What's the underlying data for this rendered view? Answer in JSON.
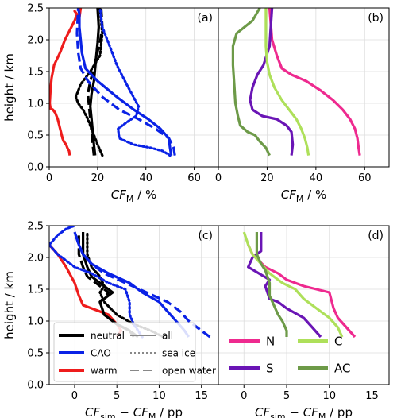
{
  "chart_data": [
    {
      "panel": "(a)",
      "type": "line",
      "ylabel": "height / km",
      "xlabel_base": "CF",
      "xlabel_sub": "M",
      "xlabel_unit": " / %",
      "xlim": [
        0,
        70
      ],
      "ylim": [
        0,
        2.5
      ],
      "xticks": [
        0,
        20,
        40,
        60
      ],
      "yticks": [
        0.0,
        0.5,
        1.0,
        1.5,
        2.0,
        2.5
      ],
      "series": [
        {
          "color": "#ee1c1c",
          "style": "solid",
          "x": [
            8.5,
            8.2,
            7.5,
            7.0,
            6.0,
            5.5,
            4.5,
            3.5,
            2.5,
            1.5,
            0.5,
            0.2,
            0.5,
            1.0,
            2.0,
            4.5,
            6.5,
            8.5,
            10.5,
            11.5,
            10.5,
            12.5,
            13.0
          ],
          "y": [
            0.18,
            0.25,
            0.3,
            0.35,
            0.4,
            0.45,
            0.6,
            0.75,
            0.85,
            0.9,
            0.92,
            1.0,
            1.2,
            1.4,
            1.6,
            1.8,
            2.0,
            2.15,
            2.3,
            2.4,
            2.45,
            2.35,
            2.5
          ]
        },
        {
          "color": "#000000",
          "style": "solid",
          "x": [
            19,
            18.5,
            18,
            17.5,
            17,
            17.5,
            18.5,
            19,
            19.5,
            20,
            20.5,
            20
          ],
          "y": [
            0.18,
            0.35,
            0.55,
            0.75,
            0.95,
            1.15,
            1.35,
            1.55,
            1.75,
            1.95,
            2.2,
            2.5
          ]
        },
        {
          "color": "#000000",
          "style": "dotted",
          "x": [
            22,
            20,
            18,
            16,
            14,
            12,
            11,
            13,
            17,
            21,
            22,
            21
          ],
          "y": [
            0.18,
            0.35,
            0.55,
            0.75,
            0.9,
            1.0,
            1.1,
            1.3,
            1.5,
            1.75,
            2.1,
            2.5
          ]
        },
        {
          "color": "#000000",
          "style": "dashed",
          "x": [
            18.5,
            18,
            17.5,
            17,
            16.5,
            16,
            17,
            18.5,
            19.5,
            21,
            22,
            21.5
          ],
          "y": [
            0.18,
            0.35,
            0.55,
            0.75,
            0.95,
            1.15,
            1.35,
            1.55,
            1.75,
            1.95,
            2.2,
            2.5
          ]
        },
        {
          "color": "#0a22e6",
          "style": "solid",
          "x": [
            50.5,
            50,
            49.5,
            46,
            41,
            35,
            28,
            20,
            15,
            13.5,
            13,
            12.5,
            12.5,
            12
          ],
          "y": [
            0.18,
            0.3,
            0.45,
            0.6,
            0.75,
            0.9,
            1.1,
            1.35,
            1.55,
            1.8,
            2.0,
            2.2,
            2.4,
            2.5
          ]
        },
        {
          "color": "#0a22e6",
          "style": "dotted",
          "x": [
            50,
            47,
            42,
            35,
            29,
            28.5,
            32,
            36,
            37,
            32,
            28,
            25,
            22,
            21
          ],
          "y": [
            0.18,
            0.25,
            0.3,
            0.35,
            0.45,
            0.6,
            0.7,
            0.8,
            0.95,
            1.3,
            1.6,
            1.9,
            2.2,
            2.5
          ]
        },
        {
          "color": "#0a22e6",
          "style": "dashed",
          "x": [
            52,
            51.5,
            49.5,
            44,
            37,
            29,
            22,
            16,
            13,
            12,
            11.5,
            12
          ],
          "y": [
            0.18,
            0.3,
            0.45,
            0.6,
            0.75,
            0.9,
            1.1,
            1.35,
            1.55,
            1.8,
            2.1,
            2.5
          ]
        }
      ]
    },
    {
      "panel": "(b)",
      "type": "line",
      "xlabel_base": "CF",
      "xlabel_sub": "M",
      "xlabel_unit": " / %",
      "xlim": [
        0,
        70
      ],
      "ylim": [
        0,
        2.5
      ],
      "xticks": [
        0,
        20,
        40,
        60
      ],
      "series": [
        {
          "name": "N",
          "color": "#ee2a8f",
          "style": "solid",
          "x": [
            58,
            57.5,
            57,
            56,
            54,
            51,
            47,
            42,
            36,
            30,
            26,
            24,
            22,
            21
          ],
          "y": [
            0.18,
            0.3,
            0.45,
            0.6,
            0.75,
            0.9,
            1.05,
            1.2,
            1.35,
            1.45,
            1.55,
            1.75,
            2.0,
            2.5
          ]
        },
        {
          "name": "S",
          "color": "#6a15b5",
          "style": "solid",
          "x": [
            30,
            30.5,
            30,
            28,
            24,
            18,
            14,
            13,
            14,
            16,
            18.5,
            21,
            21.5,
            22
          ],
          "y": [
            0.18,
            0.35,
            0.55,
            0.65,
            0.75,
            0.8,
            0.9,
            1.05,
            1.25,
            1.45,
            1.6,
            1.9,
            2.2,
            2.5
          ]
        },
        {
          "name": "C",
          "color": "#aee05a",
          "style": "solid",
          "x": [
            37,
            36.5,
            35.5,
            34,
            32,
            29,
            26,
            23,
            21,
            20,
            19.5,
            19.5,
            19.5
          ],
          "y": [
            0.18,
            0.3,
            0.45,
            0.6,
            0.75,
            0.9,
            1.05,
            1.25,
            1.45,
            1.65,
            1.9,
            2.2,
            2.5
          ]
        },
        {
          "name": "AC",
          "color": "#6d9a48",
          "style": "solid",
          "x": [
            21,
            19.5,
            17,
            15,
            12,
            9,
            8,
            7,
            6.5,
            6,
            6,
            7.5,
            14,
            17
          ],
          "y": [
            0.18,
            0.3,
            0.4,
            0.5,
            0.55,
            0.65,
            0.8,
            1.0,
            1.3,
            1.6,
            1.9,
            2.1,
            2.3,
            2.5
          ]
        }
      ]
    },
    {
      "panel": "(c)",
      "type": "line",
      "ylabel": "height / km",
      "xlabel_base": "CF",
      "xlabel_sub": "sim",
      "xlabel_mid": " − CF",
      "xlabel_sub2": "M",
      "xlabel_unit": " / pp",
      "xlim": [
        -3,
        17
      ],
      "ylim": [
        0,
        2.5
      ],
      "xticks": [
        0,
        5,
        10,
        15
      ],
      "yticks": [
        0.0,
        0.5,
        1.0,
        1.5,
        2.0,
        2.5
      ],
      "series": [
        {
          "color": "#ee1c1c",
          "style": "solid",
          "x": [
            5,
            5.5,
            5,
            4,
            2,
            1,
            0.5,
            0,
            -1,
            -2,
            -3
          ],
          "y": [
            0.75,
            0.85,
            0.95,
            1.1,
            1.2,
            1.25,
            1.4,
            1.6,
            1.85,
            2.05,
            2.2
          ]
        },
        {
          "color": "#000000",
          "style": "solid",
          "x": [
            7,
            6.5,
            5,
            3.5,
            3,
            4.5,
            3.5,
            2,
            1.5,
            1,
            1
          ],
          "y": [
            0.75,
            0.85,
            0.95,
            1.1,
            1.3,
            1.45,
            1.55,
            1.7,
            1.85,
            2.05,
            2.4
          ]
        },
        {
          "color": "#000000",
          "style": "dotted",
          "x": [
            10.5,
            9,
            7,
            5,
            3.5,
            3,
            3.5,
            3,
            2,
            1.5,
            1.5
          ],
          "y": [
            0.75,
            0.85,
            0.95,
            1.1,
            1.3,
            1.45,
            1.55,
            1.7,
            1.85,
            2.05,
            2.4
          ]
        },
        {
          "color": "#000000",
          "style": "dashed",
          "x": [
            7.5,
            6.5,
            5,
            3.5,
            3,
            4,
            3,
            1.5,
            1,
            0.5,
            0.5
          ],
          "y": [
            0.75,
            0.85,
            0.95,
            1.1,
            1.3,
            1.45,
            1.55,
            1.7,
            1.85,
            2.05,
            2.4
          ]
        },
        {
          "color": "#0a22e6",
          "style": "solid",
          "x": [
            13.5,
            13,
            12,
            11,
            10,
            8,
            6.5,
            4,
            2,
            1,
            0.5,
            0
          ],
          "y": [
            0.75,
            0.85,
            1.0,
            1.15,
            1.3,
            1.45,
            1.6,
            1.75,
            1.9,
            2.05,
            2.2,
            2.4
          ]
        },
        {
          "color": "#0a22e6",
          "style": "dotted",
          "x": [
            8,
            7.5,
            7,
            6.5,
            6.5,
            6,
            4,
            2,
            0,
            -1,
            -2,
            -3,
            -2,
            -1,
            0
          ],
          "y": [
            0.75,
            0.85,
            0.95,
            1.1,
            1.3,
            1.5,
            1.6,
            1.75,
            1.85,
            1.95,
            2.05,
            2.2,
            2.35,
            2.45,
            2.5
          ]
        },
        {
          "color": "#0a22e6",
          "style": "dashed",
          "x": [
            16,
            15,
            13.5,
            12.5,
            11,
            8.5,
            6,
            3.5,
            2,
            1,
            0.5,
            0
          ],
          "y": [
            0.75,
            0.85,
            1.0,
            1.15,
            1.3,
            1.45,
            1.6,
            1.75,
            1.9,
            2.05,
            2.2,
            2.4
          ]
        }
      ],
      "legend": [
        {
          "label": "neutral",
          "color": "#000000",
          "style": "solid",
          "thick": true
        },
        {
          "label": "CAO",
          "color": "#0a22e6",
          "style": "solid",
          "thick": true
        },
        {
          "label": "warm",
          "color": "#ee1c1c",
          "style": "solid",
          "thick": true
        },
        {
          "label": "all",
          "color": "#888888",
          "style": "solid",
          "thick": false
        },
        {
          "label": "sea ice",
          "color": "#888888",
          "style": "dotted",
          "thick": false
        },
        {
          "label": "open water",
          "color": "#888888",
          "style": "dashed",
          "thick": false
        }
      ]
    },
    {
      "panel": "(d)",
      "type": "line",
      "xlabel_base": "CF",
      "xlabel_sub": "sim",
      "xlabel_mid": " − CF",
      "xlabel_sub2": "M",
      "xlabel_unit": " / pp",
      "xlim": [
        -3,
        17
      ],
      "ylim": [
        0,
        2.5
      ],
      "xticks": [
        0,
        5,
        10,
        15
      ],
      "series": [
        {
          "name": "N",
          "color": "#ee2a8f",
          "style": "solid",
          "x": [
            13,
            12,
            11,
            10.5,
            10,
            7,
            5,
            4,
            2.5,
            1,
            0.5
          ],
          "y": [
            0.75,
            0.9,
            1.05,
            1.2,
            1.45,
            1.55,
            1.65,
            1.75,
            1.85,
            2.05,
            2.2
          ]
        },
        {
          "name": "S",
          "color": "#6a15b5",
          "style": "solid",
          "x": [
            9,
            8,
            7,
            5,
            4,
            3,
            2.5,
            3,
            0.5,
            1,
            2,
            2
          ],
          "y": [
            0.75,
            0.9,
            1.05,
            1.2,
            1.3,
            1.35,
            1.55,
            1.65,
            1.85,
            2.0,
            2.1,
            2.4
          ]
        },
        {
          "name": "C",
          "color": "#aee05a",
          "style": "solid",
          "x": [
            11.5,
            11,
            10,
            8.5,
            7,
            6,
            4.5,
            3,
            2,
            1,
            0.5,
            0
          ],
          "y": [
            0.75,
            0.9,
            1.05,
            1.2,
            1.35,
            1.5,
            1.6,
            1.75,
            1.9,
            2.05,
            2.2,
            2.4
          ]
        },
        {
          "name": "AC",
          "color": "#6d9a48",
          "style": "solid",
          "x": [
            5,
            5,
            4.5,
            4,
            3.5,
            3,
            3,
            2.5,
            2,
            1.5,
            1.5,
            1.5
          ],
          "y": [
            0.75,
            0.85,
            1.0,
            1.1,
            1.25,
            1.4,
            1.6,
            1.8,
            1.9,
            2.05,
            2.2,
            2.4
          ]
        }
      ],
      "legend": [
        {
          "label": "N",
          "color": "#ee2a8f"
        },
        {
          "label": "C",
          "color": "#aee05a"
        },
        {
          "label": "S",
          "color": "#6a15b5"
        },
        {
          "label": "AC",
          "color": "#6d9a48"
        }
      ]
    }
  ]
}
